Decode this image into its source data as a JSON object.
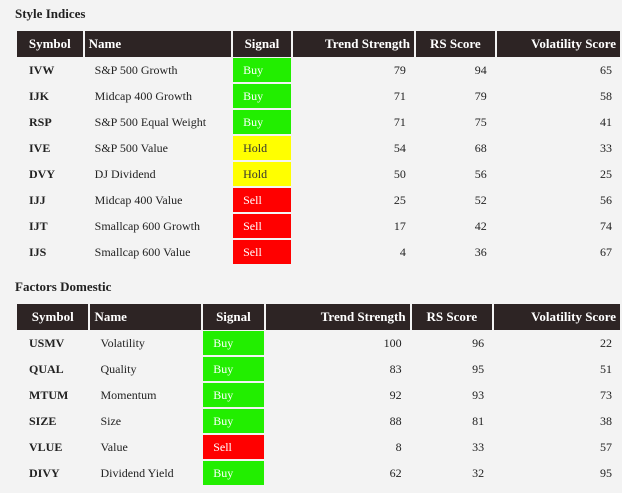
{
  "style_indices": {
    "title": "Style Indices",
    "headers": [
      "Symbol",
      "Name",
      "Signal",
      "Trend Strength",
      "RS Score",
      "Volatility Score"
    ],
    "rows": [
      {
        "symbol": "IVW",
        "name": "S&P 500 Growth",
        "signal": "Buy",
        "trend": "79",
        "rs": "94",
        "vol": "65"
      },
      {
        "symbol": "IJK",
        "name": "Midcap 400 Growth",
        "signal": "Buy",
        "trend": "71",
        "rs": "79",
        "vol": "58"
      },
      {
        "symbol": "RSP",
        "name": "S&P 500 Equal Weight",
        "signal": "Buy",
        "trend": "71",
        "rs": "75",
        "vol": "41"
      },
      {
        "symbol": "IVE",
        "name": "S&P 500 Value",
        "signal": "Hold",
        "trend": "54",
        "rs": "68",
        "vol": "33"
      },
      {
        "symbol": "DVY",
        "name": "DJ Dividend",
        "signal": "Hold",
        "trend": "50",
        "rs": "56",
        "vol": "25"
      },
      {
        "symbol": "IJJ",
        "name": "Midcap 400 Value",
        "signal": "Sell",
        "trend": "25",
        "rs": "52",
        "vol": "56"
      },
      {
        "symbol": "IJT",
        "name": "Smallcap 600 Growth",
        "signal": "Sell",
        "trend": "17",
        "rs": "42",
        "vol": "74"
      },
      {
        "symbol": "IJS",
        "name": "Smallcap 600 Value",
        "signal": "Sell",
        "trend": "4",
        "rs": "36",
        "vol": "67"
      }
    ]
  },
  "factors_domestic": {
    "title": "Factors Domestic",
    "headers": [
      "Symbol",
      "Name",
      "Signal",
      "Trend Strength",
      "RS Score",
      "Volatility Score"
    ],
    "rows": [
      {
        "symbol": "USMV",
        "name": "Volatility",
        "signal": "Buy",
        "trend": "100",
        "rs": "96",
        "vol": "22"
      },
      {
        "symbol": "QUAL",
        "name": "Quality",
        "signal": "Buy",
        "trend": "83",
        "rs": "95",
        "vol": "51"
      },
      {
        "symbol": "MTUM",
        "name": "Momentum",
        "signal": "Buy",
        "trend": "92",
        "rs": "93",
        "vol": "73"
      },
      {
        "symbol": "SIZE",
        "name": "Size",
        "signal": "Buy",
        "trend": "88",
        "rs": "81",
        "vol": "38"
      },
      {
        "symbol": "VLUE",
        "name": "Value",
        "signal": "Sell",
        "trend": "8",
        "rs": "33",
        "vol": "57"
      },
      {
        "symbol": "DIVY",
        "name": "Dividend Yield",
        "signal": "Buy",
        "trend": "62",
        "rs": "32",
        "vol": "95"
      }
    ]
  },
  "signal_colors": {
    "Buy": "#22ee00",
    "Hold": "#ffff00",
    "Sell": "#ff0000"
  }
}
